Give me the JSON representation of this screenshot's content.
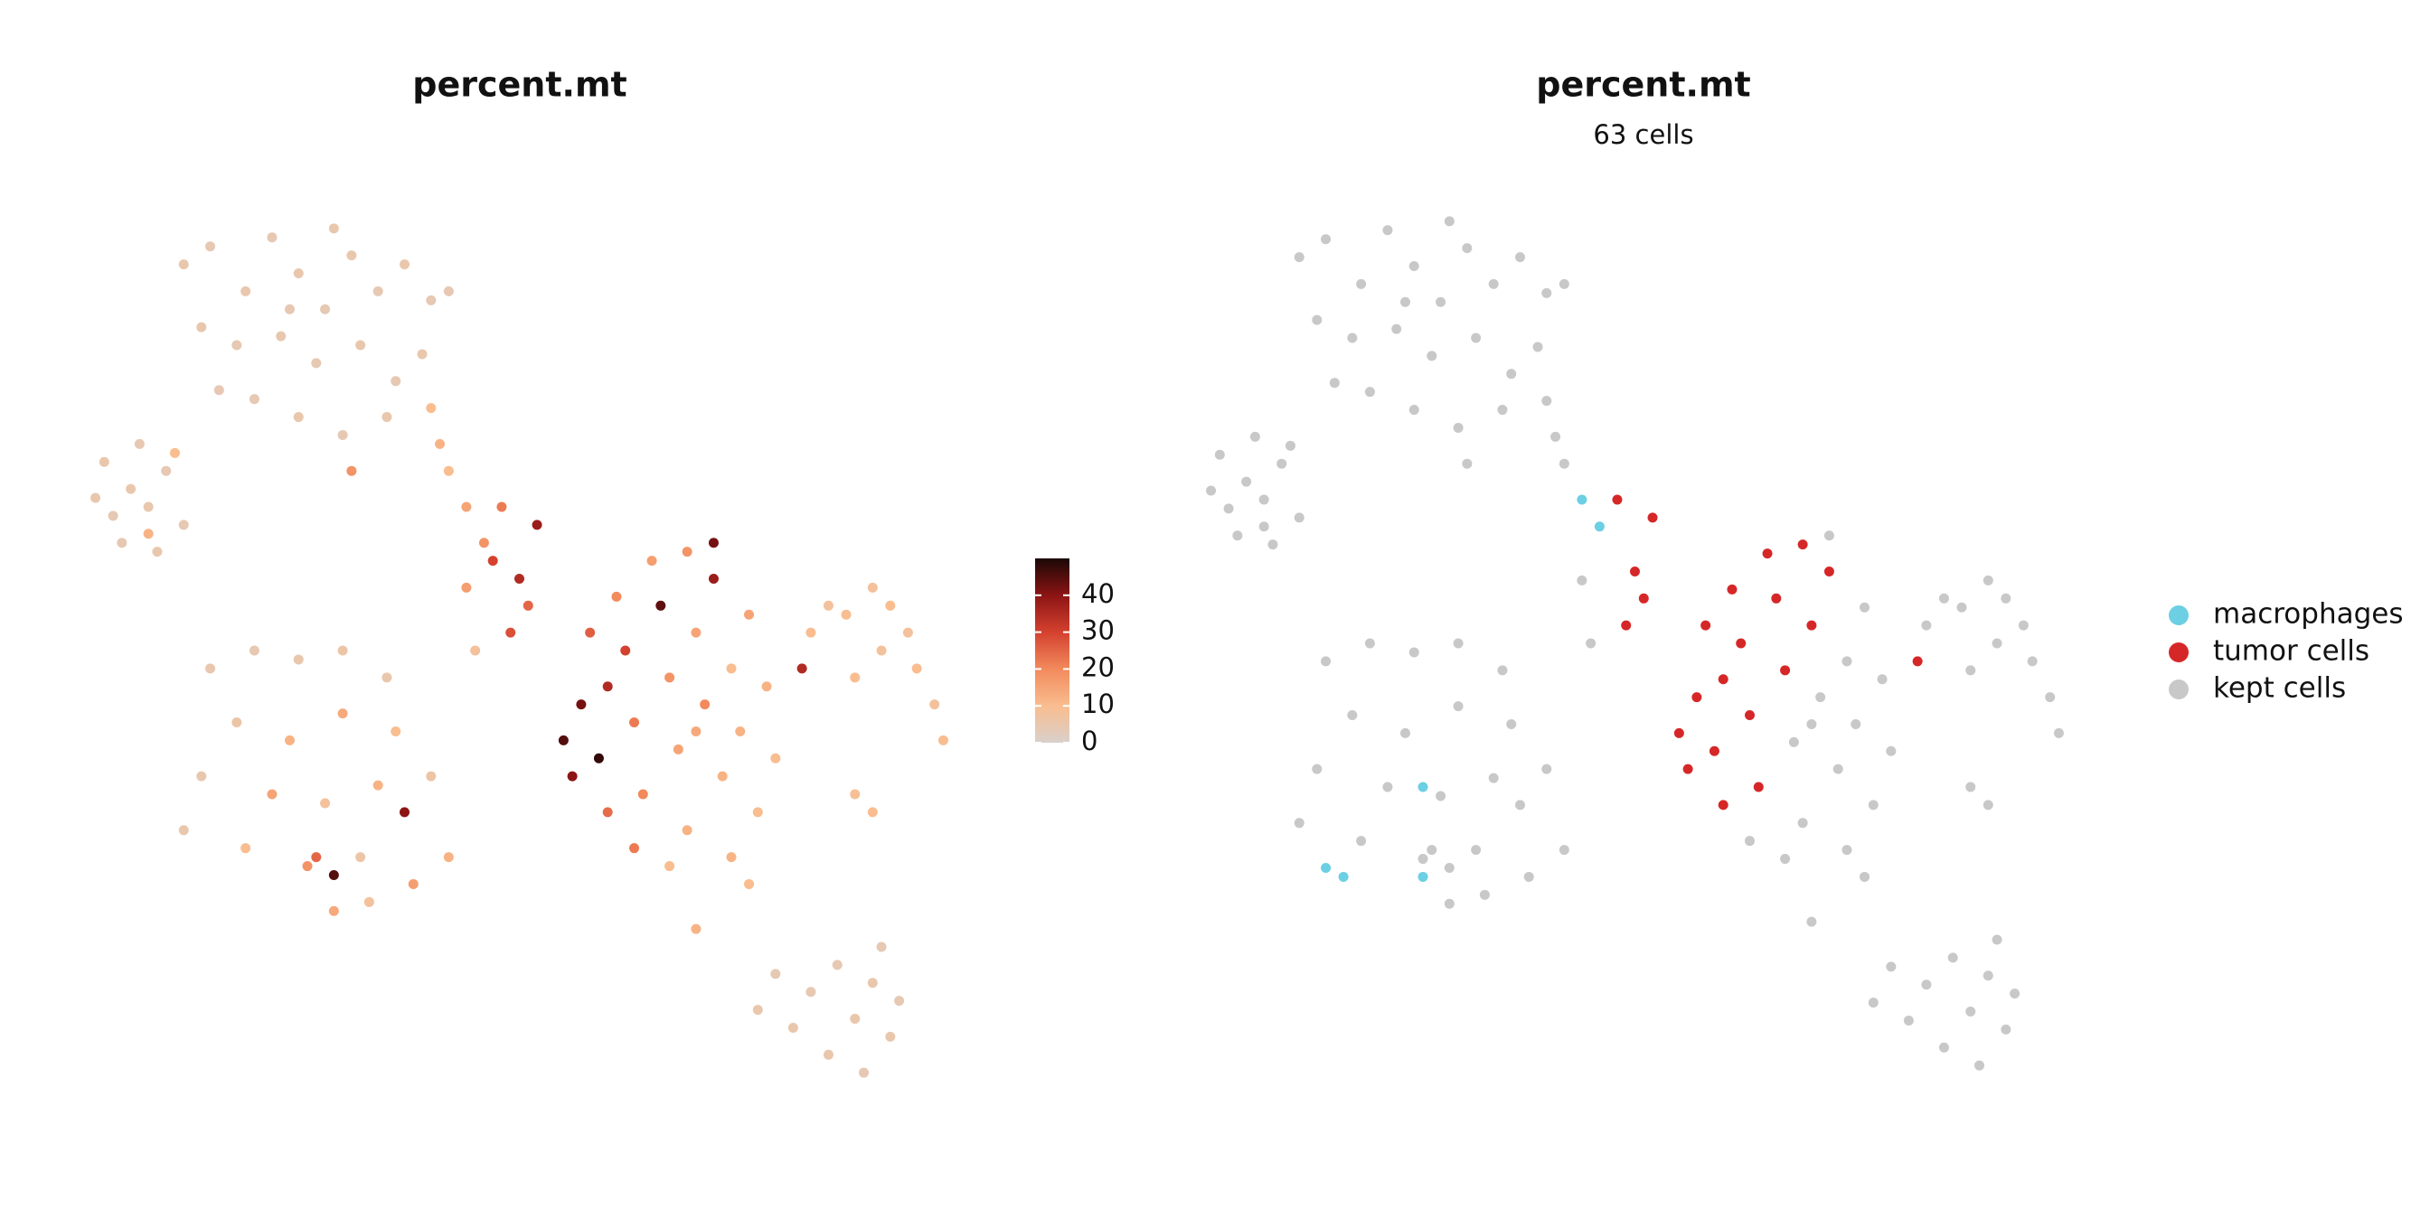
{
  "chart_data": [
    {
      "type": "scatter",
      "title": "percent.mt",
      "x": [
        12,
        15,
        19,
        22,
        25,
        28,
        31,
        34,
        37,
        40,
        14,
        18,
        23,
        27,
        32,
        36,
        39,
        20,
        25,
        30,
        35,
        16,
        42,
        29,
        24,
        31,
        11,
        2,
        4,
        6,
        5,
        8,
        10,
        3,
        12,
        9,
        7,
        8,
        40,
        41,
        42,
        44,
        46,
        48,
        47,
        50,
        51,
        52,
        49,
        44,
        15,
        20,
        25,
        30,
        35,
        18,
        24,
        30,
        36,
        14,
        22,
        28,
        34,
        40,
        19,
        26,
        32,
        38,
        42,
        29,
        33,
        12,
        29,
        27,
        37,
        55,
        57,
        56,
        59,
        60,
        62,
        63,
        64,
        66,
        67,
        68,
        69,
        70,
        71,
        72,
        73,
        74,
        75,
        76,
        77,
        78,
        65,
        69,
        72,
        61,
        58,
        63,
        67,
        74,
        79,
        60,
        70,
        83,
        85,
        87,
        90,
        92,
        94,
        95,
        97,
        98,
        91,
        88,
        82,
        88,
        90,
        77,
        79,
        81,
        83,
        85,
        86,
        88,
        89,
        90,
        91,
        92,
        93,
        70,
        76,
        45
      ],
      "y": [
        93,
        95,
        90,
        96,
        92,
        88,
        94,
        90,
        93,
        89,
        86,
        84,
        85,
        82,
        84,
        80,
        83,
        78,
        76,
        74,
        76,
        79,
        90,
        97,
        88,
        70,
        72,
        67,
        65,
        68,
        62,
        66,
        70,
        71,
        64,
        61,
        73,
        63,
        77,
        73,
        70,
        66,
        62,
        66,
        60,
        58,
        55,
        64,
        52,
        57,
        48,
        50,
        49,
        50,
        47,
        42,
        40,
        43,
        41,
        36,
        34,
        33,
        35,
        36,
        28,
        26,
        27,
        24,
        27,
        21,
        22,
        30,
        25,
        27,
        32,
        40,
        44,
        36,
        38,
        46,
        50,
        42,
        34,
        55,
        47,
        39,
        30,
        52,
        44,
        58,
        36,
        48,
        41,
        54,
        32,
        46,
        60,
        61,
        62,
        56,
        52,
        28,
        26,
        27,
        38,
        32,
        41,
        52,
        55,
        54,
        57,
        55,
        52,
        48,
        44,
        40,
        50,
        47,
        48,
        34,
        32,
        10,
        14,
        8,
        12,
        5,
        15,
        9,
        3,
        13,
        17,
        7,
        11,
        19,
        24,
        50
      ],
      "values": [
        5,
        4,
        5,
        4,
        5,
        4,
        5,
        4,
        5,
        4,
        5,
        4,
        5,
        4,
        5,
        4,
        5,
        4,
        5,
        4,
        5,
        4,
        4,
        5,
        4,
        18,
        10,
        5,
        4,
        5,
        4,
        5,
        4,
        5,
        4,
        5,
        4,
        12,
        10,
        12,
        10,
        15,
        18,
        22,
        30,
        35,
        25,
        38,
        28,
        16,
        5,
        4,
        5,
        6,
        5,
        6,
        12,
        14,
        10,
        5,
        15,
        8,
        12,
        6,
        10,
        18,
        6,
        16,
        12,
        14,
        8,
        5,
        45,
        25,
        40,
        45,
        42,
        40,
        48,
        35,
        30,
        22,
        20,
        44,
        18,
        15,
        12,
        15,
        20,
        38,
        12,
        10,
        12,
        15,
        10,
        12,
        16,
        18,
        42,
        20,
        26,
        22,
        10,
        12,
        10,
        24,
        14,
        10,
        8,
        10,
        8,
        10,
        8,
        10,
        8,
        10,
        8,
        10,
        35,
        9,
        10,
        5,
        4,
        5,
        4,
        5,
        4,
        5,
        4,
        5,
        4,
        5,
        4,
        12,
        10,
        8
      ],
      "colors": [
        "#d9d0cb",
        "#f9bd8f",
        "#f28a5c",
        "#d4412f",
        "#8c1414",
        "#1a0806"
      ],
      "clim": [
        0,
        50
      ],
      "cticks": [
        0,
        10,
        20,
        30,
        40
      ],
      "xlim": [
        0,
        100
      ],
      "ylim": [
        0,
        100
      ]
    },
    {
      "type": "scatter",
      "title": "percent.mt",
      "subtitle": "63 cells",
      "legend": "right",
      "xlim": [
        0,
        100
      ],
      "ylim": [
        0,
        100
      ],
      "series": [
        {
          "name": "macrophages",
          "color": "#6ccfe3",
          "x": [
            44,
            46,
            15,
            17,
            26,
            26
          ],
          "y": [
            66,
            63,
            25,
            24,
            24,
            34
          ]
        },
        {
          "name": "tumor cells",
          "color": "#d62728",
          "x": [
            48,
            50,
            51,
            52,
            49,
            55,
            57,
            56,
            59,
            60,
            62,
            63,
            66,
            69,
            72,
            70,
            61,
            58,
            60,
            64,
            82,
            65,
            67
          ],
          "y": [
            66,
            58,
            55,
            64,
            52,
            40,
            44,
            36,
            38,
            46,
            50,
            42,
            55,
            61,
            58,
            52,
            56,
            52,
            32,
            34,
            48,
            60,
            47
          ]
        },
        {
          "name": "kept cells",
          "color": "#c8c8c8",
          "x": [
            12,
            15,
            19,
            22,
            25,
            28,
            31,
            34,
            37,
            40,
            14,
            18,
            23,
            27,
            32,
            36,
            39,
            20,
            25,
            30,
            35,
            16,
            42,
            29,
            24,
            31,
            11,
            2,
            4,
            6,
            5,
            8,
            10,
            3,
            12,
            9,
            7,
            8,
            40,
            41,
            42,
            44,
            15,
            20,
            25,
            30,
            35,
            18,
            24,
            30,
            36,
            14,
            22,
            28,
            34,
            40,
            19,
            26,
            32,
            38,
            42,
            29,
            33,
            12,
            29,
            27,
            37,
            68,
            69,
            71,
            73,
            74,
            75,
            76,
            77,
            78,
            63,
            67,
            74,
            79,
            70,
            72,
            83,
            85,
            87,
            90,
            92,
            94,
            95,
            97,
            98,
            91,
            88,
            88,
            90,
            77,
            79,
            81,
            83,
            85,
            86,
            88,
            89,
            90,
            91,
            92,
            93,
            70,
            76,
            45
          ],
          "y": [
            93,
            95,
            90,
            96,
            92,
            88,
            94,
            90,
            93,
            89,
            86,
            84,
            85,
            82,
            84,
            80,
            83,
            78,
            76,
            74,
            76,
            79,
            90,
            97,
            88,
            70,
            72,
            67,
            65,
            68,
            62,
            66,
            70,
            71,
            64,
            61,
            73,
            63,
            77,
            73,
            70,
            57,
            48,
            50,
            49,
            50,
            47,
            42,
            40,
            43,
            41,
            36,
            34,
            33,
            35,
            36,
            28,
            26,
            27,
            24,
            27,
            21,
            22,
            30,
            25,
            27,
            32,
            39,
            30,
            44,
            36,
            48,
            41,
            54,
            32,
            46,
            28,
            26,
            27,
            38,
            41,
            62,
            52,
            55,
            54,
            57,
            55,
            52,
            48,
            44,
            40,
            50,
            47,
            34,
            32,
            10,
            14,
            8,
            12,
            5,
            15,
            9,
            3,
            13,
            17,
            7,
            11,
            19,
            24,
            50
          ]
        }
      ]
    }
  ]
}
